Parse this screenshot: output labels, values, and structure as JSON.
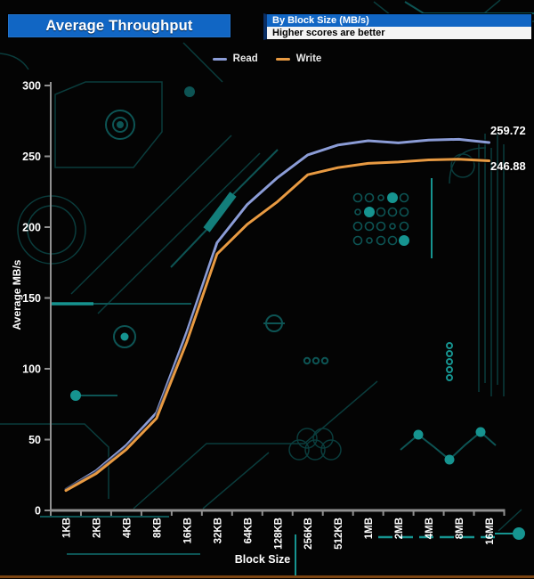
{
  "header": {
    "title": "Average Throughput",
    "subtitle_primary": "By Block Size (MB/s)",
    "subtitle_secondary": "Higher scores are better"
  },
  "legend": {
    "items": [
      {
        "label": "Read",
        "color": "#8b9cd6"
      },
      {
        "label": "Write",
        "color": "#e89a42"
      }
    ]
  },
  "chart_data": {
    "type": "line",
    "title": "Average Throughput",
    "subtitle": "By Block Size (MB/s) — Higher scores are better",
    "categories": [
      "1KB",
      "2KB",
      "4KB",
      "8KB",
      "16KB",
      "32KB",
      "64KB",
      "128KB",
      "256KB",
      "512KB",
      "1MB",
      "2MB",
      "4MB",
      "8MB",
      "16MB"
    ],
    "series": [
      {
        "name": "Read",
        "color": "#8b9cd6",
        "values": [
          15,
          28,
          46,
          69,
          126,
          189,
          216,
          235,
          251,
          258,
          261,
          259.5,
          261.5,
          262,
          259.72
        ],
        "end_label": "259.72"
      },
      {
        "name": "Write",
        "color": "#e89a42",
        "values": [
          14,
          26,
          43,
          65,
          119,
          181,
          202,
          218,
          237,
          242,
          245,
          246,
          247.5,
          248,
          246.88
        ],
        "end_label": "246.88"
      }
    ],
    "xlabel": "Block Size",
    "ylabel": "Average MB/s",
    "ylim": [
      0,
      300
    ],
    "ytick_step": 50,
    "grid": false,
    "legend_position": "top",
    "axis_color": "#909090",
    "tick_label_color": "#ffffff"
  },
  "style": {
    "accent_blue": "#1166c4",
    "circuit_dim": "#0a3c3c",
    "circuit_mid": "#0d5454",
    "circuit_bright": "#169490",
    "bottom_rule_color": "#7b4412"
  }
}
